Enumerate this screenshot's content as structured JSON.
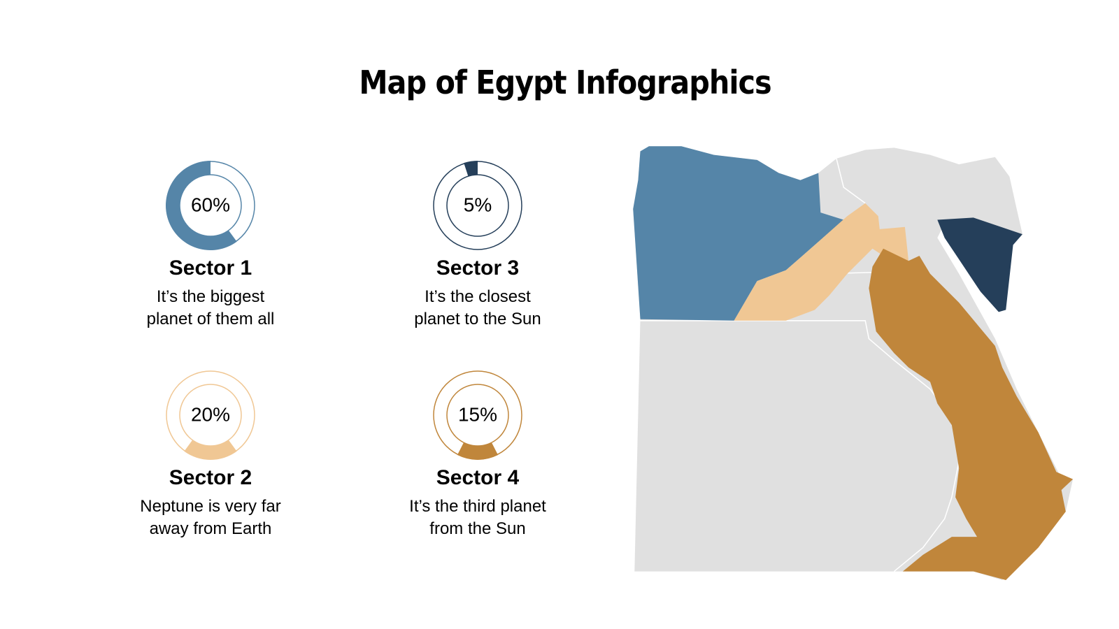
{
  "title": "Map of Egypt Infographics",
  "sectors": [
    {
      "name": "Sector 1",
      "value": 60,
      "value_label": "60%",
      "text": [
        "It’s the biggest",
        "planet of them all"
      ],
      "color": "#5585a8"
    },
    {
      "name": "Sector 2",
      "value": 20,
      "value_label": "20%",
      "text": [
        "Neptune is very far",
        "away from Earth"
      ],
      "color": "#f0c794"
    },
    {
      "name": "Sector 3",
      "value": 5,
      "value_label": "5%",
      "text": [
        "It’s the closest",
        "planet to the Sun"
      ],
      "color": "#253f5a"
    },
    {
      "name": "Sector 4",
      "value": 15,
      "value_label": "15%",
      "text": [
        "It’s the third planet",
        "from the Sun"
      ],
      "color": "#c0863b"
    }
  ]
}
